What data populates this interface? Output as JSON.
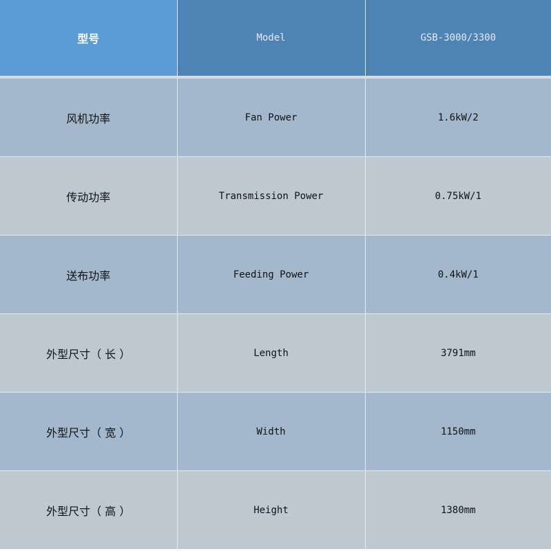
{
  "header": {
    "col1": "型号",
    "col2": "Model",
    "col3": "GSB-3000/3300"
  },
  "rows": [
    {
      "cn": "风机功率",
      "en": "Fan Power",
      "value": "1.6kW/2"
    },
    {
      "cn": "传动功率",
      "en": "Transmission Power",
      "value": "0.75kW/1"
    },
    {
      "cn": "送布功率",
      "en": "Feeding Power",
      "value": "0.4kW/1"
    },
    {
      "cn": "外型尺寸（ 长 ）",
      "en": "Length",
      "value": "3791mm"
    },
    {
      "cn": "外型尺寸（ 宽 ）",
      "en": "Width",
      "value": "1150mm"
    },
    {
      "cn": "外型尺寸（ 高 ）",
      "en": "Height",
      "value": "1380mm"
    }
  ],
  "colors": {
    "header_first": "#5b9bd5",
    "header": "#4e84b5",
    "row_odd": "#a3b8cc",
    "row_even": "#bdc8d1"
  }
}
